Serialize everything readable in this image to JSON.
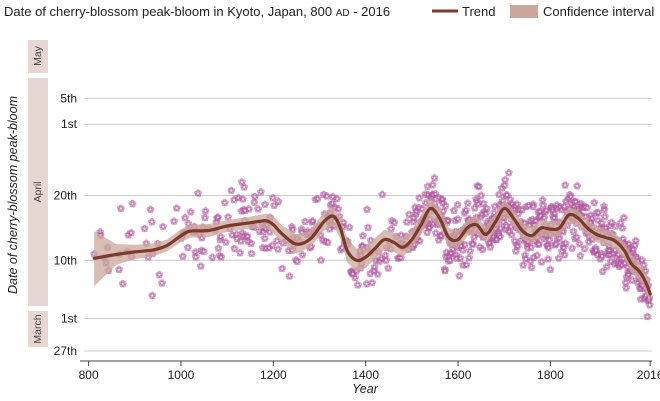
{
  "chart_data": {
    "type": "scatter",
    "title": "Date of cherry-blossom peak-bloom in Kyoto, Japan, 800",
    "title_small_caps": "AD",
    "title_end": " - 2016",
    "xlabel": "Year",
    "ylabel": "Date of cherry-blossom peak-bloom",
    "xlim": [
      790,
      2020
    ],
    "ylim": [
      -4,
      44
    ],
    "x_ticks": [
      800,
      1000,
      1200,
      1400,
      1600,
      1800,
      2016
    ],
    "x_tick_labels": [
      "800",
      "1000",
      "1200",
      "1400",
      "1600",
      "1800",
      "2016"
    ],
    "y_ticks": [
      -4,
      1,
      10,
      20,
      35
    ],
    "y_tick_labels": [
      "27th",
      "1st",
      "10th",
      "20th",
      "5th"
    ],
    "y_tick_label_extra": {
      "value": 31,
      "label": "1st"
    },
    "month_bands": [
      {
        "label": "March",
        "from": -4,
        "to": 0
      },
      {
        "label": "April",
        "from": 0,
        "to": 30
      },
      {
        "label": "May",
        "from": 30,
        "to": 36
      }
    ],
    "legend": {
      "position": "top-right",
      "items": [
        "Trend",
        "Confidence interval"
      ]
    },
    "colors": {
      "trend": "#7a3b2e",
      "ci": "#c9a79a",
      "points": "#b05a9e",
      "band": "#e8d6d2",
      "grid": "#cccccc"
    },
    "trend": {
      "x": [
        812,
        860,
        900,
        940,
        970,
        1000,
        1020,
        1060,
        1100,
        1140,
        1170,
        1185,
        1200,
        1220,
        1250,
        1280,
        1310,
        1330,
        1345,
        1360,
        1380,
        1400,
        1420,
        1440,
        1460,
        1480,
        1500,
        1520,
        1540,
        1560,
        1580,
        1600,
        1620,
        1640,
        1660,
        1680,
        1700,
        1720,
        1740,
        1760,
        1780,
        1800,
        1820,
        1840,
        1860,
        1880,
        1900,
        1920,
        1940,
        1960,
        1975,
        1990,
        2000,
        2010,
        2016
      ],
      "y": [
        10.3,
        10.9,
        11.3,
        11.6,
        12.3,
        13.8,
        14.5,
        14.6,
        15.3,
        15.7,
        16.0,
        16.1,
        15.5,
        14.0,
        12.5,
        13.3,
        16.0,
        16.8,
        15.0,
        11.5,
        10.0,
        10.5,
        11.8,
        13.2,
        12.8,
        12.0,
        13.2,
        15.5,
        18.0,
        16.5,
        13.5,
        13.2,
        15.0,
        15.5,
        14.0,
        15.8,
        18.0,
        16.5,
        14.5,
        13.8,
        15.0,
        14.8,
        15.0,
        17.0,
        16.5,
        15.0,
        14.0,
        13.5,
        13.0,
        11.5,
        9.5,
        8.5,
        7.5,
        6.0,
        4.8
      ],
      "ci_upper": [
        14.5,
        12.5,
        12.4,
        12.6,
        13.2,
        14.8,
        15.5,
        15.6,
        16.2,
        16.6,
        17.0,
        17.2,
        16.8,
        15.3,
        14.0,
        14.6,
        17.4,
        18.3,
        16.6,
        13.3,
        11.8,
        12.2,
        13.4,
        14.7,
        14.3,
        13.4,
        14.6,
        17.0,
        19.5,
        18.0,
        15.0,
        14.5,
        16.3,
        16.8,
        15.3,
        17.1,
        19.3,
        17.8,
        15.8,
        15.1,
        16.2,
        16.0,
        16.2,
        18.2,
        17.7,
        16.2,
        15.2,
        14.7,
        14.2,
        12.8,
        10.9,
        9.9,
        8.9,
        7.5,
        6.5
      ],
      "ci_lower": [
        6.0,
        9.3,
        10.2,
        10.6,
        11.4,
        12.8,
        13.5,
        13.6,
        14.4,
        14.8,
        15.0,
        15.0,
        14.2,
        12.7,
        11.0,
        12.0,
        14.6,
        15.3,
        13.4,
        9.7,
        8.2,
        8.8,
        10.2,
        11.7,
        11.3,
        10.6,
        11.8,
        14.0,
        16.5,
        15.0,
        12.0,
        11.9,
        13.7,
        14.2,
        12.7,
        14.5,
        16.7,
        15.2,
        13.2,
        12.5,
        13.8,
        13.6,
        13.8,
        15.8,
        15.3,
        13.8,
        12.8,
        12.3,
        11.8,
        10.2,
        8.1,
        7.1,
        6.1,
        4.5,
        3.1
      ]
    }
  }
}
